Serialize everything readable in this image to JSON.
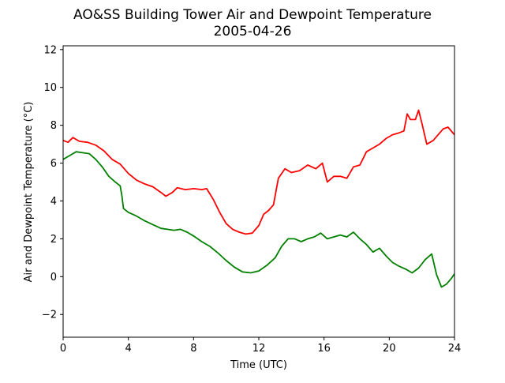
{
  "chart_data": {
    "type": "line",
    "title": "AO&SS Building Tower Air and Dewpoint Temperature",
    "subtitle": "2005-04-26",
    "xlabel": "Time (UTC)",
    "ylabel": "Air and Dewpoint Temperature (°C)",
    "xlim": [
      0,
      24
    ],
    "ylim": [
      -3.2,
      12.2
    ],
    "xticks": [
      0,
      4,
      8,
      12,
      16,
      20,
      24
    ],
    "yticks": [
      -2,
      0,
      2,
      4,
      6,
      8,
      10,
      12
    ],
    "grid": false,
    "legend": "none",
    "series": [
      {
        "color": "#ff0000",
        "x": [
          0,
          0.3,
          0.6,
          1.0,
          1.5,
          2.0,
          2.5,
          3.0,
          3.5,
          4.0,
          4.5,
          5.0,
          5.5,
          6.0,
          6.3,
          6.7,
          7.0,
          7.5,
          8.0,
          8.5,
          8.8,
          9.2,
          9.6,
          10.0,
          10.4,
          10.8,
          11.2,
          11.6,
          12.0,
          12.3,
          12.6,
          12.9,
          13.2,
          13.6,
          14.0,
          14.5,
          15.0,
          15.5,
          15.9,
          16.2,
          16.6,
          17.0,
          17.4,
          17.8,
          18.2,
          18.6,
          19.0,
          19.4,
          19.8,
          20.2,
          20.6,
          20.9,
          21.1,
          21.3,
          21.6,
          21.8,
          22.0,
          22.3,
          22.7,
          23.0,
          23.3,
          23.6,
          24.0
        ],
        "y": [
          7.2,
          7.1,
          7.35,
          7.15,
          7.1,
          6.95,
          6.65,
          6.2,
          5.95,
          5.45,
          5.1,
          4.9,
          4.75,
          4.45,
          4.25,
          4.45,
          4.7,
          4.6,
          4.65,
          4.6,
          4.65,
          4.1,
          3.4,
          2.8,
          2.5,
          2.35,
          2.25,
          2.3,
          2.7,
          3.3,
          3.5,
          3.8,
          5.2,
          5.7,
          5.5,
          5.6,
          5.9,
          5.7,
          6.0,
          5.0,
          5.3,
          5.3,
          5.2,
          5.8,
          5.9,
          6.6,
          6.8,
          7.0,
          7.3,
          7.5,
          7.6,
          7.7,
          8.6,
          8.3,
          8.3,
          8.8,
          8.1,
          7.0,
          7.2,
          7.5,
          7.8,
          7.9,
          7.5
        ]
      },
      {
        "color": "#008000",
        "x": [
          0,
          0.4,
          0.8,
          1.2,
          1.6,
          2.0,
          2.4,
          2.8,
          3.2,
          3.5,
          3.6,
          3.7,
          4.0,
          4.5,
          5.0,
          5.5,
          6.0,
          6.4,
          6.8,
          7.2,
          7.6,
          8.0,
          8.5,
          9.0,
          9.5,
          10.0,
          10.5,
          11.0,
          11.5,
          12.0,
          12.5,
          13.0,
          13.4,
          13.8,
          14.2,
          14.6,
          15.0,
          15.4,
          15.8,
          16.2,
          16.6,
          17.0,
          17.4,
          17.8,
          18.2,
          18.6,
          19.0,
          19.4,
          19.8,
          20.2,
          20.6,
          21.0,
          21.4,
          21.8,
          22.2,
          22.6,
          22.9,
          23.2,
          23.5,
          23.8,
          24.0
        ],
        "y": [
          6.2,
          6.4,
          6.6,
          6.55,
          6.5,
          6.2,
          5.8,
          5.3,
          5.0,
          4.8,
          4.3,
          3.6,
          3.4,
          3.2,
          2.95,
          2.75,
          2.55,
          2.5,
          2.45,
          2.5,
          2.35,
          2.15,
          1.85,
          1.6,
          1.25,
          0.85,
          0.5,
          0.25,
          0.2,
          0.3,
          0.6,
          1.0,
          1.6,
          2.0,
          2.0,
          1.85,
          2.0,
          2.1,
          2.3,
          2.0,
          2.1,
          2.2,
          2.1,
          2.35,
          2.0,
          1.7,
          1.3,
          1.5,
          1.1,
          0.75,
          0.55,
          0.4,
          0.2,
          0.45,
          0.9,
          1.2,
          0.1,
          -0.55,
          -0.4,
          -0.1,
          0.15
        ]
      }
    ]
  }
}
